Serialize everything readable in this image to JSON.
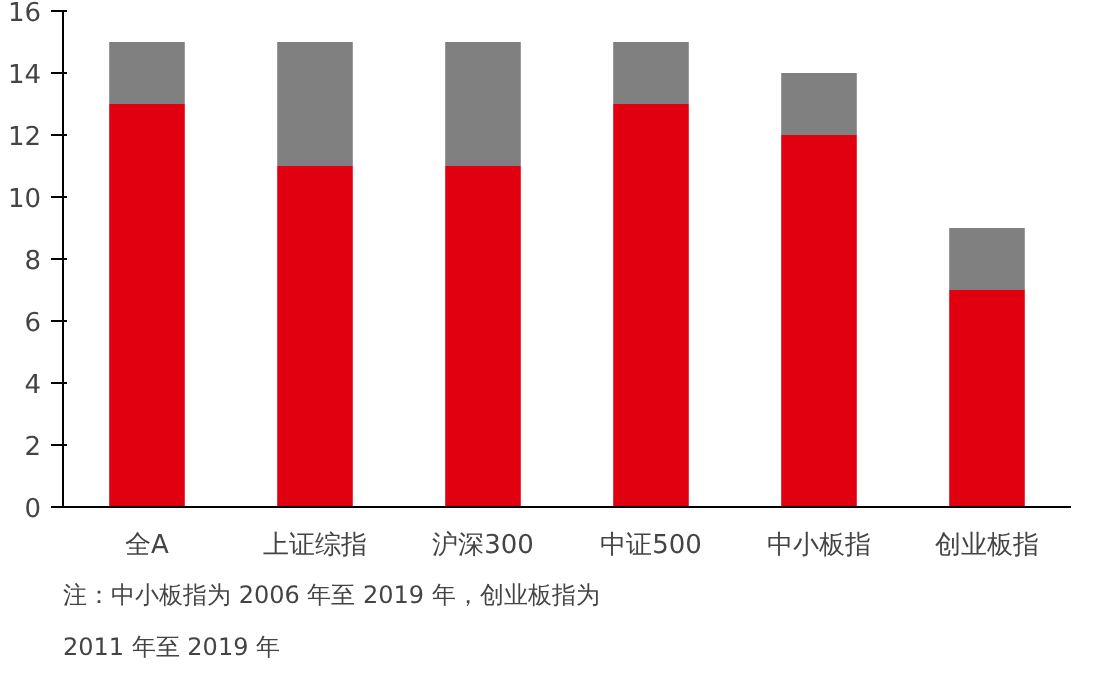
{
  "chart_data": {
    "type": "bar",
    "stacked": true,
    "categories": [
      "全A",
      "上证综指",
      "沪深300",
      "中证500",
      "中小板指",
      "创业板指"
    ],
    "series": [
      {
        "color": "#e00010",
        "values": [
          13,
          11,
          11,
          13,
          12,
          7
        ]
      },
      {
        "color": "#808080",
        "values": [
          2,
          4,
          4,
          2,
          2,
          2
        ]
      }
    ],
    "ylim": [
      0,
      16
    ],
    "yticks": [
      0,
      2,
      4,
      6,
      8,
      10,
      12,
      14,
      16
    ],
    "grid": false,
    "annotations": [
      "注：中小板指为 2006 年至 2019 年，创业板指为 2011 年至 2019 年"
    ]
  }
}
